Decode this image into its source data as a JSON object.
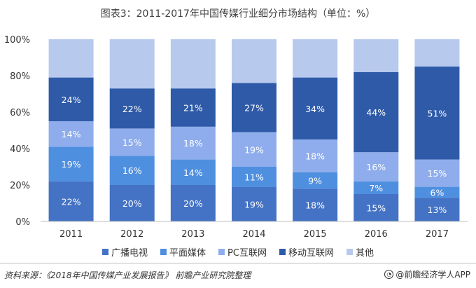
{
  "chart_data": {
    "type": "bar",
    "stacked": true,
    "title": "图表3：2011-2017年中国传媒行业细分市场结构（单位：%）",
    "categories": [
      "2011",
      "2012",
      "2013",
      "2014",
      "2015",
      "2016",
      "2017"
    ],
    "ylim": [
      0,
      100
    ],
    "yticks": [
      "0%",
      "20%",
      "40%",
      "60%",
      "80%",
      "100%"
    ],
    "grid": false,
    "legend_position": "bottom",
    "series": [
      {
        "name": "广播电视",
        "color": "#4472c4",
        "values": [
          22,
          20,
          20,
          19,
          18,
          15,
          13
        ],
        "labels": [
          "22%",
          "20%",
          "20%",
          "19%",
          "18%",
          "15%",
          "13%"
        ]
      },
      {
        "name": "平面媒体",
        "color": "#4f8fe0",
        "values": [
          19,
          16,
          14,
          11,
          9,
          7,
          6
        ],
        "labels": [
          "19%",
          "16%",
          "14%",
          "11%",
          "9%",
          "7%",
          "6%"
        ]
      },
      {
        "name": "PC互联网",
        "color": "#8fadec",
        "values": [
          14,
          15,
          18,
          19,
          18,
          16,
          15
        ],
        "labels": [
          "14%",
          "15%",
          "18%",
          "19%",
          "18%",
          "16%",
          "15%"
        ]
      },
      {
        "name": "移动互联网",
        "color": "#2e5aa8",
        "values": [
          24,
          22,
          21,
          27,
          34,
          44,
          51
        ],
        "labels": [
          "24%",
          "22%",
          "21%",
          "27%",
          "34%",
          "44%",
          "51%"
        ]
      },
      {
        "name": "其他",
        "color": "#b8c9ee",
        "values": [
          21,
          27,
          27,
          24,
          21,
          18,
          15
        ],
        "labels": [
          "",
          "",
          "",
          "",
          "",
          "",
          ""
        ]
      }
    ]
  },
  "footer": {
    "source": "资料来源：《2018年中国传媒产业发展报告》 前瞻产业研究院整理",
    "brand": "@前瞻经济学人APP",
    "brand_icon": "q-logo-icon"
  }
}
